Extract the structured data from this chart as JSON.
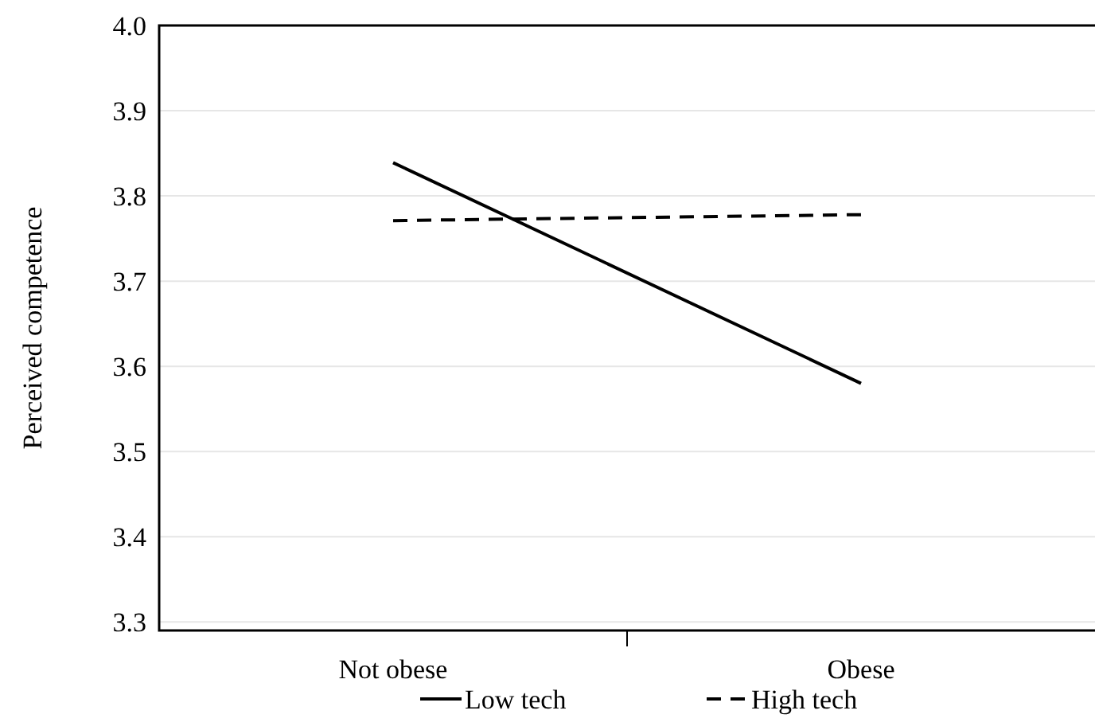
{
  "chart_data": {
    "type": "line",
    "ylabel": "Perceived competence",
    "categories": [
      "Not obese",
      "Obese"
    ],
    "series": [
      {
        "name": "Low tech",
        "color": "#000000",
        "values": [
          3.839,
          3.58
        ],
        "line_style": "solid"
      },
      {
        "name": "High tech",
        "color": "#000000",
        "values": [
          3.771,
          3.778
        ],
        "line_style": "dashed"
      }
    ],
    "ylim": [
      3.29,
      4.0
    ],
    "yticks": [
      {
        "value": 3.3,
        "label": "3.3"
      },
      {
        "value": 3.4,
        "label": "3.4"
      },
      {
        "value": 3.5,
        "label": "3.5"
      },
      {
        "value": 3.6,
        "label": "3.6"
      },
      {
        "value": 3.7,
        "label": "3.7"
      },
      {
        "value": 3.8,
        "label": "3.8"
      },
      {
        "value": 3.9,
        "label": "3.9"
      },
      {
        "value": 4.0,
        "label": "4.0"
      }
    ],
    "grid": "y",
    "legend": "bottom",
    "marker": "none"
  }
}
